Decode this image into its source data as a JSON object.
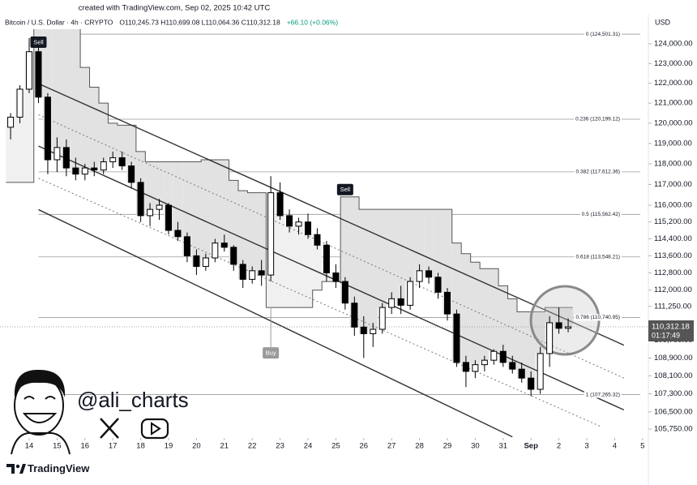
{
  "header": {
    "watermark": "created with TradingView.com, Sep 02, 2025 10:42 UTC",
    "symbol": "Bitcoin / U.S. Dollar · 4h · CRYPTO",
    "ohlc": "O110,245.73 H110,699.08 L110,064.36 C110,312.18",
    "change": "+66.10 (+0.06%)",
    "currency": "USD"
  },
  "branding": {
    "handle": "@ali_charts",
    "logo": "TradingView"
  },
  "chart_data": {
    "type": "candlestick",
    "log_scale": true,
    "grid": false,
    "up_color": "#ffffff",
    "down_color": "#000000",
    "wick_color": "#000000",
    "stop_color": "#555555",
    "sell_fill": "#e2e2e2",
    "buy_fill": "#f0f0f0",
    "x": [
      -4,
      -2,
      0,
      2,
      4,
      6,
      8,
      10,
      12,
      14,
      16,
      18,
      20,
      22,
      24,
      26,
      28,
      30,
      32,
      34,
      36,
      38,
      40,
      42,
      44,
      46,
      48,
      50,
      52,
      54,
      56,
      58,
      60,
      62,
      64,
      66,
      68,
      70,
      72,
      74,
      76,
      78,
      80,
      82,
      84,
      86,
      88,
      90,
      92,
      94,
      96,
      98,
      100,
      102,
      104,
      106,
      108,
      110,
      112,
      114,
      116
    ],
    "open": [
      119800,
      120300,
      121700,
      123600,
      121300,
      118200,
      118800,
      117800,
      117500,
      117800,
      117700,
      118100,
      118300,
      117900,
      117100,
      115500,
      115800,
      116000,
      114800,
      114500,
      113600,
      113100,
      113500,
      114200,
      114000,
      113200,
      112500,
      112900,
      112700,
      116600,
      115500,
      115000,
      115200,
      114600,
      114100,
      112800,
      112400,
      111400,
      110300,
      110000,
      110200,
      111200,
      111600,
      111300,
      112400,
      112900,
      112600,
      111900,
      110900,
      108700,
      108300,
      108600,
      108800,
      109200,
      108700,
      108400,
      108000,
      107500,
      109100,
      110500,
      110245.73
    ],
    "high": [
      120500,
      121900,
      124300,
      123800,
      121500,
      119300,
      119200,
      118300,
      118000,
      118100,
      118300,
      118600,
      118600,
      118100,
      117300,
      116100,
      116300,
      116100,
      115200,
      114700,
      113900,
      113700,
      114400,
      114600,
      114100,
      113400,
      113100,
      113400,
      117400,
      117100,
      115800,
      115400,
      115600,
      114900,
      114300,
      113200,
      112600,
      111700,
      110800,
      110500,
      111400,
      111900,
      112200,
      112600,
      113200,
      113100,
      112800,
      112100,
      111100,
      109000,
      108800,
      109000,
      109300,
      109500,
      109000,
      108700,
      108300,
      109400,
      110800,
      111200,
      110699.08
    ],
    "low": [
      119200,
      120000,
      121500,
      121000,
      117500,
      117600,
      117400,
      117200,
      117200,
      117400,
      117500,
      117800,
      117700,
      116800,
      115200,
      115000,
      115300,
      114600,
      114300,
      113300,
      112700,
      112900,
      113300,
      113800,
      112900,
      112100,
      112300,
      112200,
      112400,
      115300,
      114700,
      114600,
      114400,
      113900,
      112400,
      112100,
      111100,
      109900,
      108900,
      109400,
      110000,
      110900,
      110900,
      111100,
      112100,
      112300,
      111600,
      110600,
      108500,
      107600,
      108000,
      108300,
      108600,
      108500,
      108200,
      107800,
      107200,
      107300,
      108500,
      110000,
      110064.36
    ],
    "close": [
      120300,
      121700,
      123600,
      121300,
      118200,
      118800,
      117800,
      117500,
      117800,
      117700,
      118100,
      118300,
      117900,
      117100,
      115500,
      115800,
      116000,
      114800,
      114500,
      113600,
      113100,
      113500,
      114200,
      114000,
      113200,
      112500,
      112900,
      112700,
      116600,
      115500,
      115000,
      115200,
      114600,
      114100,
      112800,
      112400,
      111400,
      110300,
      110000,
      110200,
      111200,
      111600,
      111300,
      112400,
      112900,
      112600,
      111900,
      110900,
      108700,
      108300,
      108600,
      108800,
      109200,
      108700,
      108400,
      108000,
      107500,
      109100,
      110500,
      110245.73,
      110312.18
    ],
    "stop": [
      117100,
      117100,
      117100,
      124800,
      124800,
      124800,
      124800,
      124800,
      122800,
      121800,
      121000,
      120000,
      119900,
      119900,
      118600,
      118100,
      118100,
      118100,
      118100,
      118100,
      118100,
      118200,
      118200,
      118200,
      117200,
      116700,
      116600,
      116600,
      111200,
      111200,
      111200,
      111200,
      111200,
      112000,
      112400,
      112400,
      116400,
      116400,
      115800,
      115800,
      115800,
      115800,
      115800,
      115800,
      115800,
      115800,
      115800,
      115800,
      114200,
      113700,
      113300,
      113000,
      113000,
      112200,
      111600,
      111000,
      111000,
      111000,
      111200,
      111200,
      111200
    ],
    "signals": [
      {
        "label": "Sell",
        "x": 2
      },
      {
        "label": "Buy",
        "x": 52
      },
      {
        "label": "Sell",
        "x": 68
      }
    ],
    "fib_levels": [
      {
        "value": 124501.31,
        "label": "0 (124,501.31)"
      },
      {
        "value": 120199.12,
        "label": "0.236 (120,199.12)"
      },
      {
        "value": 117612.36,
        "label": "0.382 (117,612.36)"
      },
      {
        "value": 115562.42,
        "label": "0.5 (115,562.42)"
      },
      {
        "value": 113548.21,
        "label": "0.618 (113,548.21)"
      },
      {
        "value": 110740.95,
        "label": "0.786 (110,740.95)"
      },
      {
        "value": 107265.32,
        "label": "1 (107,265.32)"
      }
    ],
    "channels": [
      {
        "x": [
          2,
          128
        ],
        "values": [
          121980,
          109480
        ],
        "style": "solid"
      },
      {
        "x": [
          2,
          128
        ],
        "values": [
          118870,
          106590
        ],
        "style": "solid"
      },
      {
        "x": [
          2,
          104
        ],
        "values": [
          115790,
          105410
        ],
        "style": "solid"
      },
      {
        "x": [
          2,
          128
        ],
        "values": [
          120420,
          108000
        ],
        "style": "dotted"
      },
      {
        "x": [
          2,
          123
        ],
        "values": [
          117300,
          105860
        ],
        "style": "dotted"
      }
    ],
    "last_price": {
      "value": 110312.18,
      "label": "110,312.18"
    },
    "countdown": "01:17:49",
    "xlim": [
      -6.28,
      133.26
    ],
    "ylim": [
      105360,
      125090
    ],
    "xticks": [
      {
        "value": 0,
        "label": "14"
      },
      {
        "value": 6,
        "label": "15"
      },
      {
        "value": 12,
        "label": "16"
      },
      {
        "value": 18,
        "label": "17"
      },
      {
        "value": 24,
        "label": "18"
      },
      {
        "value": 30,
        "label": "19"
      },
      {
        "value": 36,
        "label": "20"
      },
      {
        "value": 42,
        "label": "21"
      },
      {
        "value": 48,
        "label": "22"
      },
      {
        "value": 54,
        "label": "23"
      },
      {
        "value": 60,
        "label": "24"
      },
      {
        "value": 66,
        "label": "25"
      },
      {
        "value": 72,
        "label": "26"
      },
      {
        "value": 78,
        "label": "27"
      },
      {
        "value": 84,
        "label": "28"
      },
      {
        "value": 90,
        "label": "29"
      },
      {
        "value": 96,
        "label": "30"
      },
      {
        "value": 102,
        "label": "31"
      },
      {
        "value": 108,
        "label": "Sep"
      },
      {
        "value": 114,
        "label": "2"
      },
      {
        "value": 120,
        "label": "3"
      },
      {
        "value": 126,
        "label": "4"
      },
      {
        "value": 132,
        "label": "5"
      }
    ],
    "yticks": [
      {
        "value": 124000,
        "label": "124,000.00"
      },
      {
        "value": 123000,
        "label": "123,000.00"
      },
      {
        "value": 122000,
        "label": "122,000.00"
      },
      {
        "value": 121000,
        "label": "121,000.00"
      },
      {
        "value": 120000,
        "label": "120,000.00"
      },
      {
        "value": 119000,
        "label": "119,000.00"
      },
      {
        "value": 118000,
        "label": "118,000.00"
      },
      {
        "value": 117000,
        "label": "117,000.00"
      },
      {
        "value": 116000,
        "label": "116,000.00"
      },
      {
        "value": 115200,
        "label": "115,200.00"
      },
      {
        "value": 114400,
        "label": "114,400.00"
      },
      {
        "value": 113600,
        "label": "113,600.00"
      },
      {
        "value": 112800,
        "label": "112,800.00"
      },
      {
        "value": 112000,
        "label": "112,000.00"
      },
      {
        "value": 111250,
        "label": "111,250.00"
      },
      {
        "value": 109700,
        "label": "109,700.00"
      },
      {
        "value": 108900,
        "label": "108,900.00"
      },
      {
        "value": 108100,
        "label": "108,100.00"
      },
      {
        "value": 107300,
        "label": "107,300.00"
      },
      {
        "value": 106500,
        "label": "106,500.00"
      },
      {
        "value": 105750,
        "label": "105,750.00"
      }
    ]
  }
}
